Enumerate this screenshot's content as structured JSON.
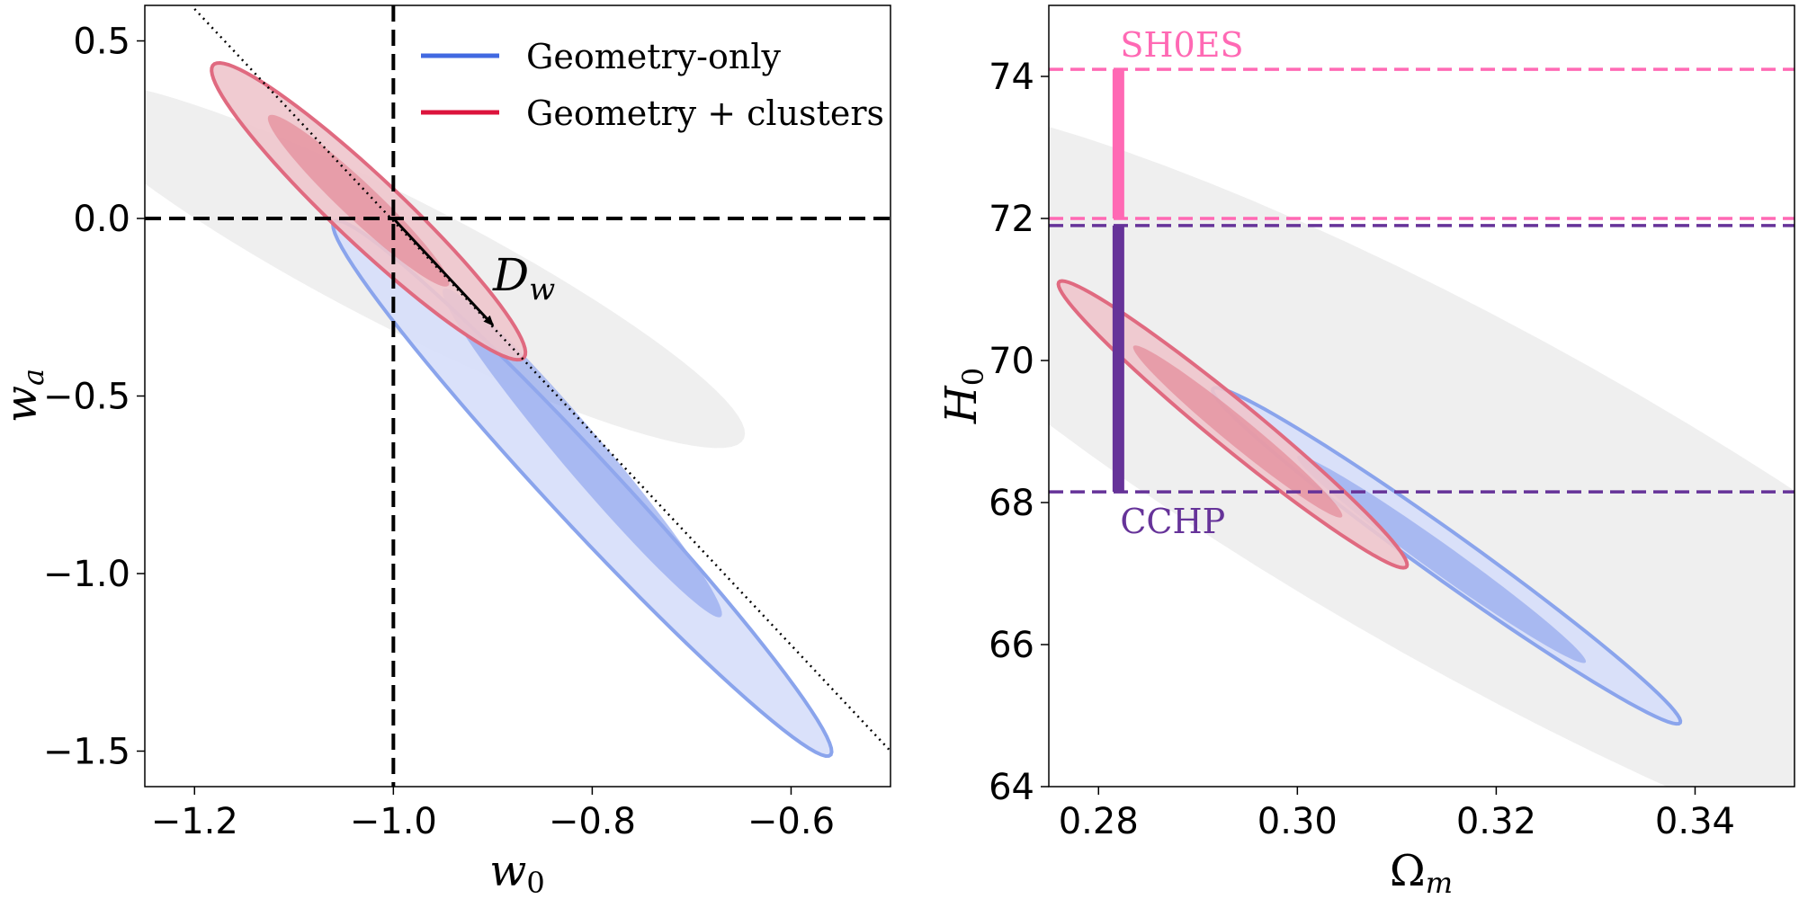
{
  "chart_data": [
    {
      "type": "contour",
      "xlabel": "w0",
      "ylabel": "wa",
      "xlim": [
        -1.25,
        -0.5
      ],
      "ylim": [
        -1.6,
        0.6
      ],
      "x_ticks": [
        -1.2,
        -1.0,
        -0.8,
        -0.6
      ],
      "x_tick_labels": [
        "−1.2",
        "−1.0",
        "−0.8",
        "−0.6"
      ],
      "y_ticks": [
        0.5,
        0.0,
        -0.5,
        -1.0,
        -1.5
      ],
      "y_tick_labels": [
        "0.5",
        "0.0",
        "−0.5",
        "−1.0",
        "−1.5"
      ],
      "grid": false,
      "legend": {
        "position": "top-right",
        "entries": [
          {
            "label": "Geometry-only",
            "color": "#4169E1"
          },
          {
            "label": "Geometry + clusters",
            "color": "#DC143C"
          }
        ]
      },
      "reference_lines": [
        {
          "orientation": "vertical",
          "x": -1.0,
          "style": "dashed",
          "color": "#000000"
        },
        {
          "orientation": "horizontal",
          "y": 0.0,
          "style": "dashed",
          "color": "#000000"
        }
      ],
      "dotted_line": {
        "from": [
          -1.2,
          0.59
        ],
        "to": [
          -0.5,
          -1.5
        ]
      },
      "arrow": {
        "from": [
          -1.0,
          0.0
        ],
        "to": [
          -0.9,
          -0.3
        ],
        "label": "D",
        "label_sub": "w"
      },
      "contours": [
        {
          "series": "prior",
          "color": "#efefef",
          "center": [
            -0.99,
            -0.13
          ],
          "semi_axis_1": [
            0.34,
            -0.5
          ],
          "semi_axis_2": [
            -0.05,
            -0.13
          ]
        },
        {
          "series": "Geometry-only",
          "level": "2-sigma",
          "color": "#4169E1",
          "center": [
            -0.81,
            -0.76
          ],
          "semi_axis_1": [
            0.25,
            -0.75
          ],
          "semi_axis_2": [
            -0.02,
            -0.08
          ]
        },
        {
          "series": "Geometry-only",
          "level": "1-sigma",
          "color": "#4169E1",
          "center": [
            -0.81,
            -0.66
          ],
          "semi_axis_1": [
            0.14,
            -0.46
          ],
          "semi_axis_2": [
            -0.012,
            -0.055
          ]
        },
        {
          "series": "Geometry + clusters",
          "level": "2-sigma",
          "color": "#DC143C",
          "center": [
            -1.025,
            0.02
          ],
          "semi_axis_1": [
            0.155,
            -0.415
          ],
          "semi_axis_2": [
            -0.03,
            -0.05
          ]
        },
        {
          "series": "Geometry + clusters",
          "level": "1-sigma",
          "color": "#DC143C",
          "center": [
            -1.035,
            0.05
          ],
          "semi_axis_1": [
            0.09,
            -0.24
          ],
          "semi_axis_2": [
            -0.015,
            -0.03
          ]
        }
      ]
    },
    {
      "type": "contour",
      "xlabel": "Ωm",
      "ylabel": "H0",
      "xlim": [
        0.275,
        0.35
      ],
      "ylim": [
        64,
        75
      ],
      "x_ticks": [
        0.28,
        0.3,
        0.32,
        0.34
      ],
      "x_tick_labels": [
        "0.28",
        "0.30",
        "0.32",
        "0.34"
      ],
      "y_ticks": [
        64,
        66,
        68,
        70,
        72,
        74
      ],
      "y_tick_labels": [
        "64",
        "66",
        "68",
        "70",
        "72",
        "74"
      ],
      "grid": false,
      "reference_lines": [
        {
          "orientation": "horizontal",
          "y": 74.1,
          "style": "dashed",
          "color": "#ff69b4"
        },
        {
          "orientation": "horizontal",
          "y": 72.0,
          "style": "dashed",
          "color": "#ff69b4"
        },
        {
          "orientation": "horizontal",
          "y": 71.9,
          "style": "dashed",
          "color": "#663399"
        },
        {
          "orientation": "horizontal",
          "y": 68.15,
          "style": "dashed",
          "color": "#663399"
        }
      ],
      "error_bars": [
        {
          "label": "SH0ES",
          "x": 0.282,
          "y_low": 72.0,
          "y_high": 74.1,
          "color": "#ff69b4",
          "label_position": "above"
        },
        {
          "label": "CCHP",
          "x": 0.282,
          "y_low": 68.15,
          "y_high": 71.9,
          "color": "#663399",
          "label_position": "below"
        }
      ],
      "contours": [
        {
          "series": "prior",
          "color": "#efefef",
          "center": [
            0.32,
            67.9
          ],
          "semi_axis_1": [
            0.07,
            -5.4
          ],
          "semi_axis_2": [
            -0.007,
            -2.2
          ]
        },
        {
          "series": "Geometry-only",
          "level": "2-sigma",
          "color": "#4169E1",
          "center": [
            0.315,
            67.25
          ],
          "semi_axis_1": [
            0.0235,
            -2.35
          ],
          "semi_axis_2": [
            -0.0012,
            -0.28
          ]
        },
        {
          "series": "Geometry-only",
          "level": "1-sigma",
          "color": "#4169E1",
          "center": [
            0.3145,
            67.2
          ],
          "semi_axis_1": [
            0.0145,
            -1.45
          ],
          "semi_axis_2": [
            -0.0008,
            -0.17
          ]
        },
        {
          "series": "Geometry + clusters",
          "level": "2-sigma",
          "color": "#DC143C",
          "center": [
            0.2935,
            69.1
          ],
          "semi_axis_1": [
            0.0175,
            -2.0
          ],
          "semi_axis_2": [
            -0.0012,
            -0.28
          ]
        },
        {
          "series": "Geometry + clusters",
          "level": "1-sigma",
          "color": "#DC143C",
          "center": [
            0.294,
            69.0
          ],
          "semi_axis_1": [
            0.0105,
            -1.2
          ],
          "semi_axis_2": [
            -0.0007,
            -0.17
          ]
        }
      ]
    }
  ]
}
